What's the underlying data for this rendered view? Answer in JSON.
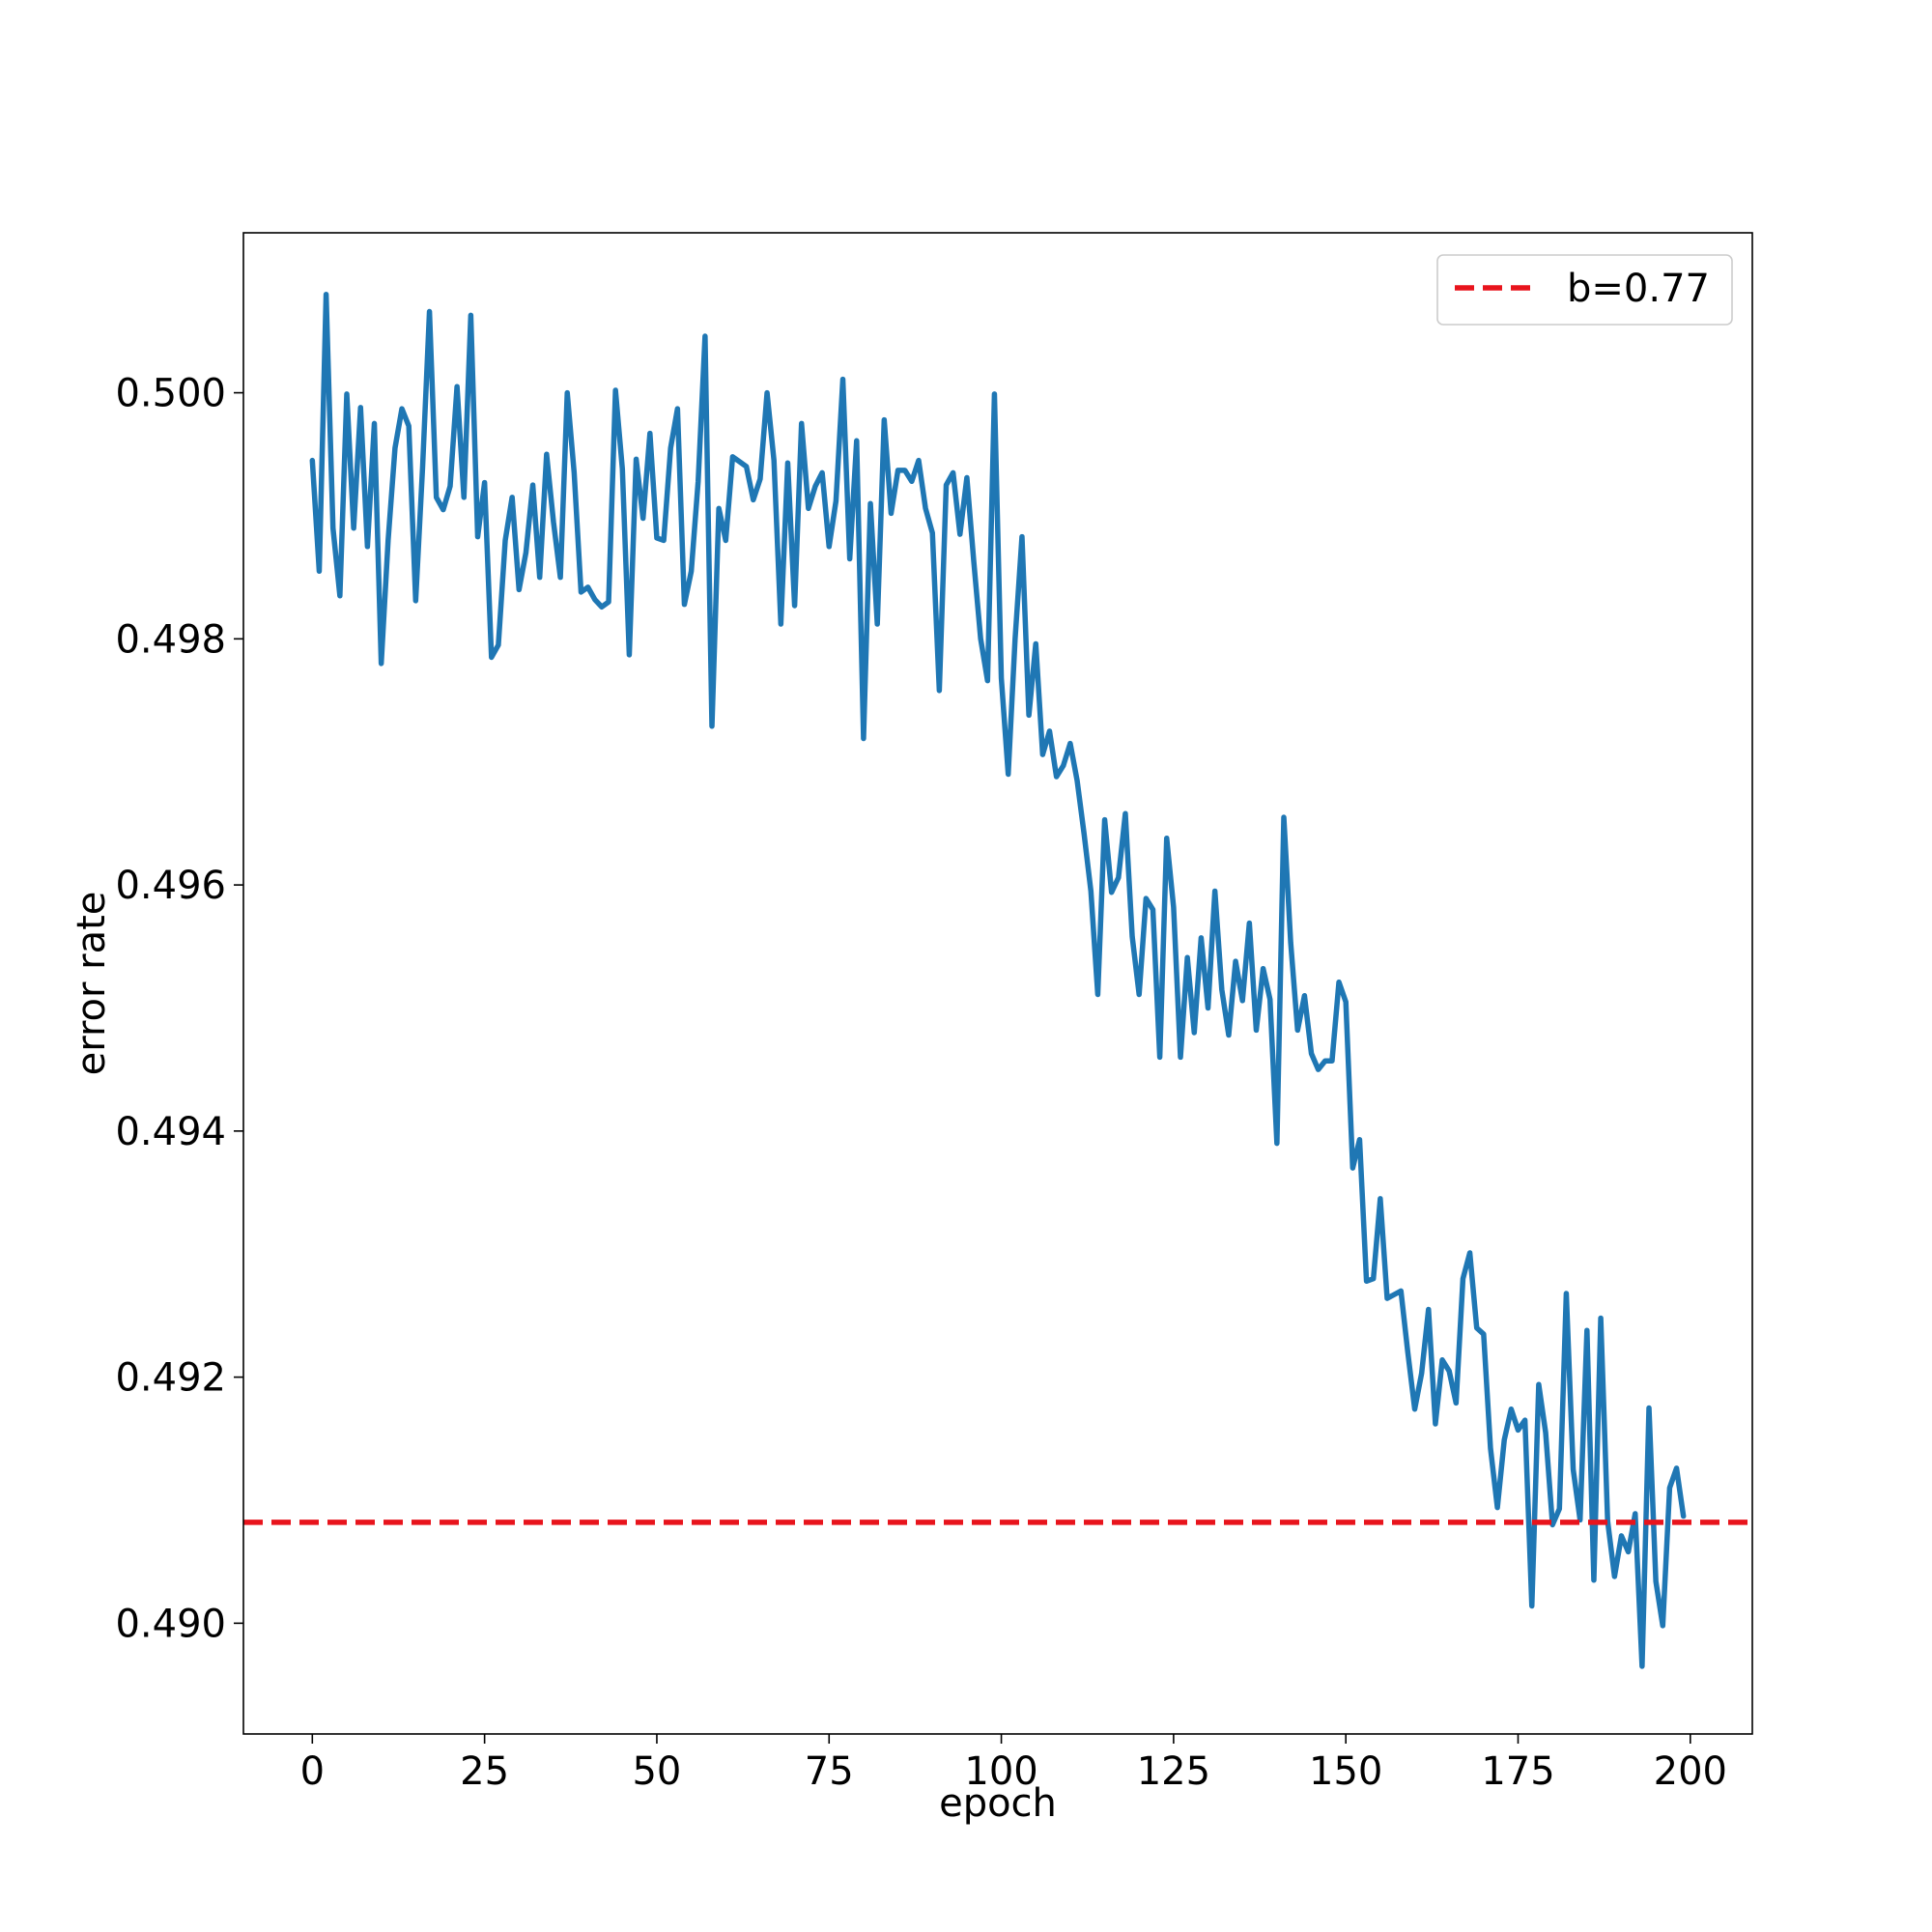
{
  "chart_data": {
    "type": "line",
    "title": "",
    "xlabel": "epoch",
    "ylabel": "error rate",
    "xlim": [
      -10,
      209
    ],
    "ylim": [
      0.4891,
      0.5013
    ],
    "x_ticks": [
      0,
      25,
      50,
      75,
      100,
      125,
      150,
      175,
      200
    ],
    "y_ticks": [
      0.49,
      0.492,
      0.494,
      0.496,
      0.498,
      0.5
    ],
    "y_tick_labels": [
      "0.490",
      "0.492",
      "0.494",
      "0.496",
      "0.498",
      "0.500"
    ],
    "grid": false,
    "legend_position": "top-right",
    "series": [
      {
        "color": "#1f77b4",
        "x_start": 0,
        "x_step": 1,
        "values": [
          0.49945,
          0.49855,
          0.5008,
          0.4989,
          0.49835,
          0.49999,
          0.4989,
          0.49988,
          0.49875,
          0.49975,
          0.4978,
          0.4988,
          0.49955,
          0.49987,
          0.49973,
          0.49831,
          0.49939,
          0.50066,
          0.49915,
          0.49905,
          0.49924,
          0.50005,
          0.49915,
          0.50063,
          0.49883,
          0.49927,
          0.49785,
          0.49795,
          0.4988,
          0.49915,
          0.4984,
          0.4987,
          0.49925,
          0.4985,
          0.4995,
          0.49895,
          0.4985,
          0.5,
          0.49935,
          0.49838,
          0.49842,
          0.49832,
          0.49826,
          0.4983,
          0.50002,
          0.49938,
          0.49787,
          0.49946,
          0.49898,
          0.49967,
          0.49882,
          0.4988,
          0.49955,
          0.49987,
          0.49828,
          0.49855,
          0.49928,
          0.50046,
          0.49729,
          0.49906,
          0.4988,
          0.49948,
          0.49944,
          0.4994,
          0.49913,
          0.4993,
          0.5,
          0.49945,
          0.49812,
          0.49943,
          0.49827,
          0.49975,
          0.49906,
          0.49924,
          0.49935,
          0.49875,
          0.49912,
          0.50011,
          0.49865,
          0.49961,
          0.49719,
          0.4991,
          0.49812,
          0.49978,
          0.49902,
          0.49937,
          0.49937,
          0.49928,
          0.49945,
          0.49906,
          0.49886,
          0.49758,
          0.49925,
          0.49935,
          0.49885,
          0.49931,
          0.49863,
          0.498,
          0.49766,
          0.49999,
          0.49768,
          0.4969,
          0.498,
          0.49883,
          0.49738,
          0.49796,
          0.49706,
          0.49725,
          0.49688,
          0.49697,
          0.49715,
          0.49685,
          0.49642,
          0.49595,
          0.49511,
          0.49653,
          0.49594,
          0.49606,
          0.49658,
          0.49558,
          0.49511,
          0.49589,
          0.4958,
          0.4946,
          0.49638,
          0.49582,
          0.4946,
          0.49541,
          0.4948,
          0.49557,
          0.495,
          0.49595,
          0.49515,
          0.49478,
          0.49538,
          0.49506,
          0.49569,
          0.49482,
          0.49532,
          0.49507,
          0.4939,
          0.49655,
          0.49553,
          0.49482,
          0.4951,
          0.49463,
          0.4945,
          0.49457,
          0.49457,
          0.49521,
          0.49505,
          0.4937,
          0.49393,
          0.49278,
          0.4928,
          0.49345,
          0.49264,
          0.49267,
          0.4927,
          0.4922,
          0.49174,
          0.49203,
          0.49255,
          0.49162,
          0.49214,
          0.49205,
          0.49179,
          0.4928,
          0.49301,
          0.4924,
          0.49235,
          0.49142,
          0.49094,
          0.49149,
          0.49174,
          0.49157,
          0.49165,
          0.49014,
          0.49194,
          0.49155,
          0.4908,
          0.49093,
          0.49268,
          0.49125,
          0.49084,
          0.49238,
          0.49035,
          0.49248,
          0.49083,
          0.49038,
          0.49071,
          0.49058,
          0.49089,
          0.48965,
          0.49175,
          0.49034,
          0.48998,
          0.4911,
          0.49126,
          0.49087
        ]
      },
      {
        "name": "b=0.77",
        "color": "#e8141c",
        "style": "dashed",
        "constant": 0.49082
      }
    ]
  }
}
